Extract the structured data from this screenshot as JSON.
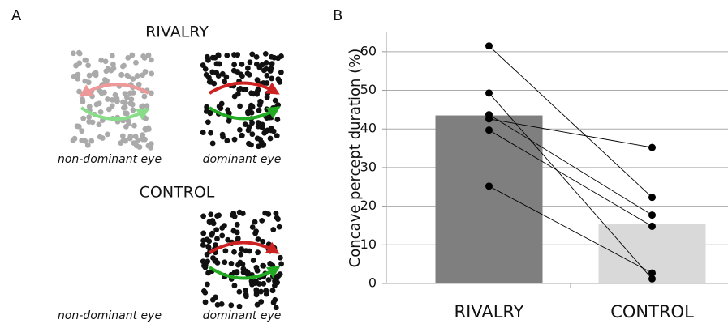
{
  "panel_a": {
    "label": "A",
    "rivalry_title": "RIVALRY",
    "control_title": "CONTROL",
    "rivalry_left_caption": "non-dominant eye",
    "rivalry_right_caption": "dominant eye",
    "control_left_caption": "non-dominant eye",
    "control_right_caption": "dominant eye"
  },
  "chart_data": {
    "type": "bar",
    "panel_label": "B",
    "y_label": "Concave percept duration (%)",
    "categories": [
      "RIVALRY",
      "CONTROL"
    ],
    "values": [
      43.5,
      15.5
    ],
    "colors": [
      "#7f7f7f",
      "#d9d9d9"
    ],
    "series": [
      {
        "values": [
          61.5,
          22.3
        ]
      },
      {
        "values": [
          49.3,
          1.2
        ]
      },
      {
        "values": [
          43.7,
          17.7
        ]
      },
      {
        "values": [
          42.6,
          35.2
        ]
      },
      {
        "values": [
          39.7,
          14.8
        ]
      },
      {
        "values": [
          25.2,
          2.7
        ]
      }
    ],
    "point_color": "#000000",
    "ylim": [
      0,
      65
    ],
    "yticks": [
      0,
      10,
      20,
      30,
      40,
      50,
      60
    ],
    "grid": true
  }
}
